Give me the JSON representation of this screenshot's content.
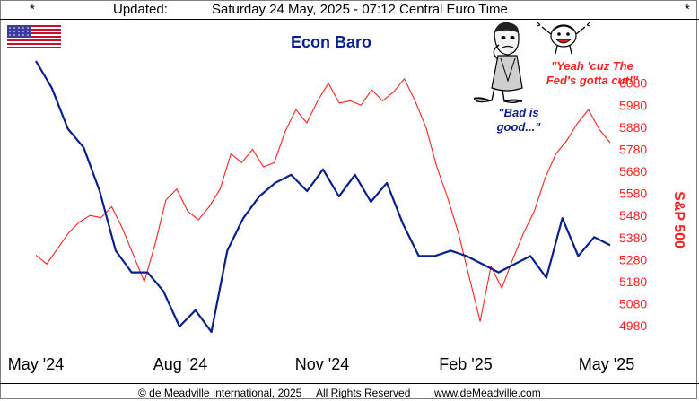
{
  "header": {
    "star_left": "*",
    "updated_label": "Updated:",
    "timestamp": "Saturday 24 May, 2025 - 07:12 Central Euro Time",
    "star_right": "*"
  },
  "footer": {
    "copyright": "© de Meadville International, 2025",
    "rights": "All Rights Reserved",
    "website": "www.deMeadville.com"
  },
  "colors": {
    "econ_baro": "#0a1f8f",
    "sp500": "#ff2020",
    "flag_red": "#c8102e",
    "flag_blue": "#3c3b9e"
  },
  "cartoon": {
    "quote_right": "\"Yeah 'cuz The Fed's gotta cut!\"",
    "quote_left": "\"Bad is good...\""
  },
  "chart_data": {
    "type": "line",
    "title": "Econ Baro",
    "x_tick_labels": [
      "May '24",
      "Aug '24",
      "Nov '24",
      "Feb '25",
      "May '25"
    ],
    "y_right_label": "S&P 500",
    "y_right_ticks": [
      6080,
      5980,
      5880,
      5780,
      5680,
      5580,
      5480,
      5380,
      5280,
      5180,
      5080,
      4980
    ],
    "y_right_range": [
      4960,
      6140
    ],
    "econ_baro_scale": "unlabeled",
    "series": [
      {
        "name": "Econ Baro",
        "color": "#0a1f8f",
        "values": [
          100,
          90,
          75,
          68,
          52,
          30,
          22,
          22,
          15,
          2,
          8,
          0,
          30,
          42,
          50,
          55,
          58,
          52,
          60,
          50,
          58,
          48,
          55,
          40,
          28,
          28,
          30,
          28,
          25,
          22,
          25,
          28,
          20,
          42,
          28,
          35,
          32
        ]
      },
      {
        "name": "S&P 500",
        "color": "#ff2020",
        "values": [
          5300,
          5260,
          5330,
          5400,
          5450,
          5480,
          5470,
          5520,
          5420,
          5300,
          5180,
          5350,
          5550,
          5600,
          5500,
          5460,
          5520,
          5600,
          5760,
          5720,
          5780,
          5700,
          5720,
          5860,
          5960,
          5900,
          6000,
          6080,
          5990,
          6000,
          5980,
          6050,
          6000,
          6040,
          6100,
          6000,
          5880,
          5700,
          5560,
          5400,
          5200,
          5000,
          5250,
          5150,
          5280,
          5400,
          5500,
          5650,
          5760,
          5820,
          5900,
          5960,
          5870,
          5810
        ]
      }
    ]
  }
}
